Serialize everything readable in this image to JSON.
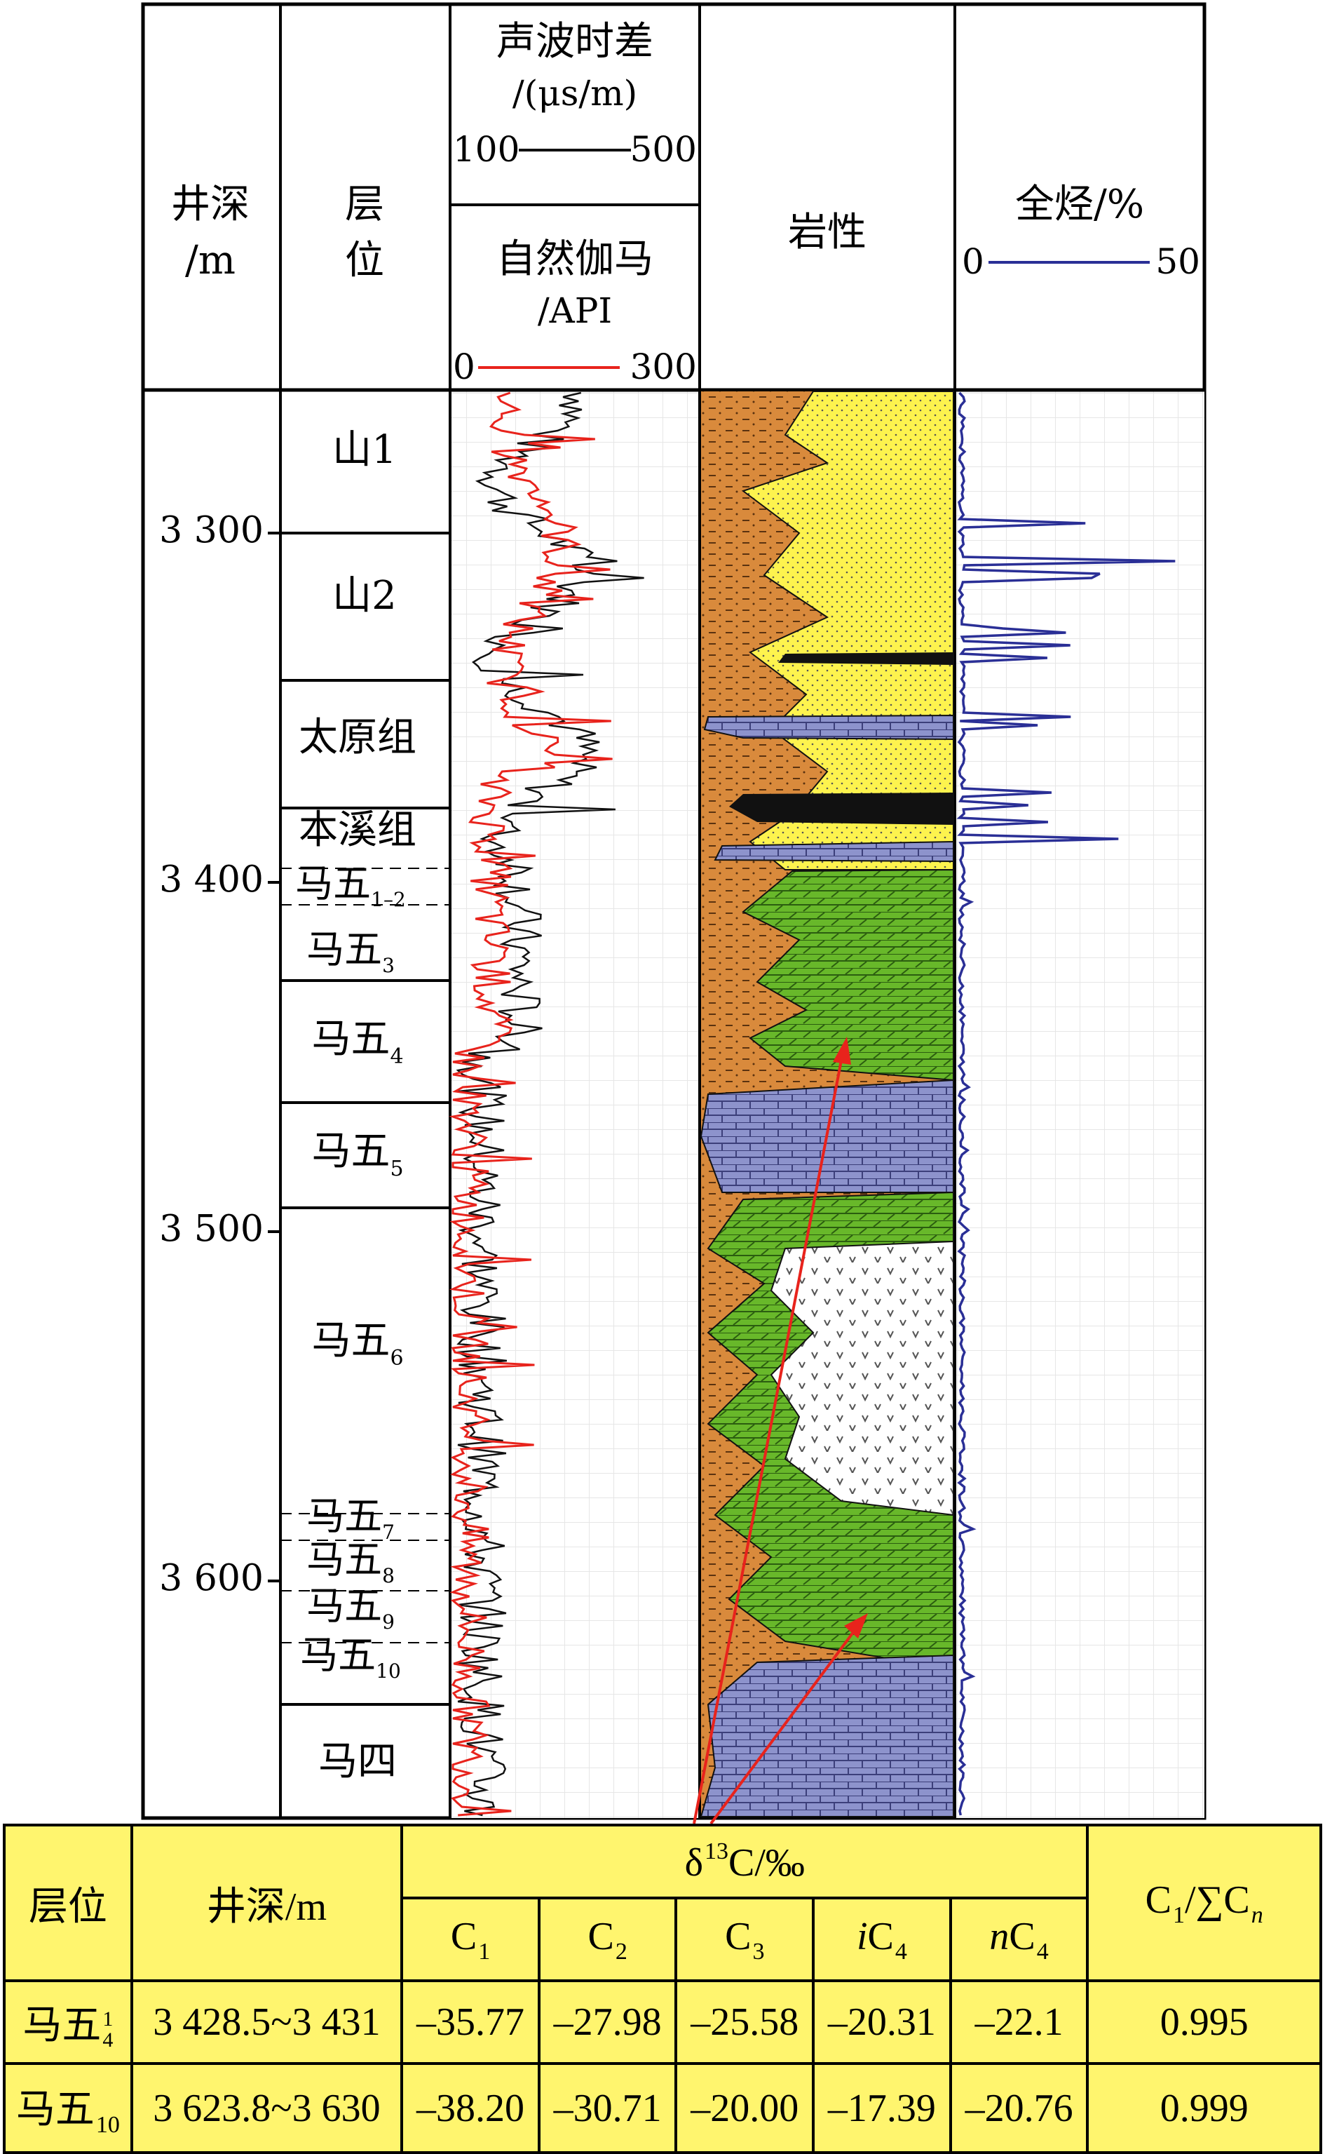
{
  "header": {
    "depth_title": "井深",
    "depth_unit": "/m",
    "layer_title_1": "层",
    "layer_title_2": "位",
    "sonic_title": "声波时差",
    "sonic_unit": "/(μs/m)",
    "sonic_min": "100",
    "sonic_max": "500",
    "gamma_title": "自然伽马",
    "gamma_unit": "/API",
    "gamma_min": "0",
    "gamma_max": "300",
    "lith_title": "岩性",
    "gas_title": "全烃/%",
    "gas_min": "0",
    "gas_max": "50"
  },
  "depth_ticks": [
    "3 300",
    "3 400",
    "3 500",
    "3 600"
  ],
  "layers": {
    "shan1": "山1",
    "shan2": "山2",
    "taiyuan": "太原组",
    "benxi": "本溪组",
    "ma5": "马五",
    "ma4": "马四",
    "sub_1_2": "1–2",
    "sub_3": "3",
    "sub_4": "4",
    "sub_5": "5",
    "sub_6": "6",
    "sub_7": "7",
    "sub_8": "8",
    "sub_9": "9",
    "sub_10": "10"
  },
  "colors": {
    "sandstone": "#fdf34e",
    "mudstone": "#d98a3c",
    "limestone": "#8d93cc",
    "dolomite": "#68b82a",
    "coal": "#111111",
    "gamma_curve": "#e8231c",
    "sonic_curve": "#111111",
    "gas_curve": "#2a2f96",
    "table_bg": "#fff56e"
  },
  "table": {
    "col_layer": "层位",
    "col_depth": "井深/m",
    "col_isotope": "δ",
    "col_isotope_sup": "13",
    "col_isotope_rest": "C/‰",
    "c1": "C",
    "c1_sub": "1",
    "c2": "C",
    "c2_sub": "2",
    "c3": "C",
    "c3_sub": "3",
    "ic4_i": "i",
    "ic4": "C",
    "ic4_sub": "4",
    "nc4_n": "n",
    "nc4": "C",
    "nc4_sub": "4",
    "ratio_c1": "C",
    "ratio_c1_sub": "1",
    "ratio_mid": "/∑C",
    "ratio_n": "n",
    "rows": [
      {
        "layer": "马五",
        "layer_sup": "1",
        "layer_sub": "4",
        "depth": "3 428.5~3 431",
        "c1": "–35.77",
        "c2": "–27.98",
        "c3": "–25.58",
        "ic4": "–20.31",
        "nc4": "–22.1",
        "ratio": "0.995"
      },
      {
        "layer": "马五",
        "layer_sub": "10",
        "depth": "3 623.8~3 630",
        "c1": "–38.20",
        "c2": "–30.71",
        "c3": "–20.00",
        "ic4": "–17.39",
        "nc4": "–20.76",
        "ratio": "0.999"
      }
    ]
  }
}
